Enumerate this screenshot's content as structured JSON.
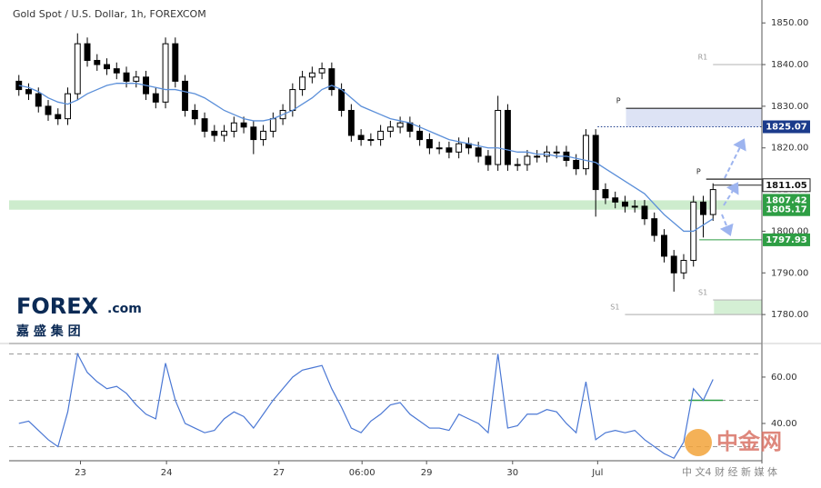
{
  "title": "Gold Spot / U.S. Dollar, 1h, FOREXCOM",
  "logo": {
    "brand": "FOREX",
    "suffix": ".com",
    "sub": "嘉 盛 集 团"
  },
  "watermark": {
    "name": "中金网",
    "sub": "中 文4 财 经 新 媒 体"
  },
  "chart_data": [
    {
      "type": "candlestick",
      "x": [
        0,
        1,
        2,
        3,
        4,
        5,
        6,
        7,
        8,
        9,
        10,
        11,
        12,
        13,
        14,
        15,
        16,
        17,
        18,
        19,
        20,
        21,
        22,
        23,
        24,
        25,
        26,
        27,
        28,
        29,
        30,
        31,
        32,
        33,
        34,
        35,
        36,
        37,
        38,
        39,
        40,
        41,
        42,
        43,
        44,
        45,
        46,
        47,
        48,
        49,
        50,
        51,
        52,
        53,
        54,
        55,
        56,
        57,
        58,
        59,
        60,
        61,
        62,
        63,
        64,
        65,
        66,
        67,
        68,
        69,
        70,
        71
      ],
      "open": [
        1836,
        1834,
        1833,
        1830,
        1828,
        1827,
        1833,
        1845,
        1841,
        1840,
        1839,
        1838,
        1836,
        1837,
        1833,
        1831,
        1845,
        1836,
        1829,
        1827,
        1824,
        1823,
        1824,
        1826,
        1825,
        1822,
        1824,
        1827,
        1829,
        1834,
        1837,
        1838,
        1839,
        1834,
        1829,
        1823,
        1822,
        1822,
        1824,
        1825,
        1826,
        1824,
        1822,
        1820,
        1820,
        1819,
        1821,
        1820,
        1818,
        1816,
        1829,
        1816,
        1816,
        1818,
        1818,
        1819,
        1819,
        1817,
        1815,
        1823,
        1810,
        1808,
        1807,
        1806,
        1806,
        1803,
        1799,
        1794,
        1790,
        1793,
        1807,
        1804
      ],
      "high": [
        1837.5,
        1835.5,
        1834.5,
        1831.5,
        1829.5,
        1834.5,
        1847.5,
        1846.5,
        1842.5,
        1841.5,
        1840.5,
        1839.5,
        1838.5,
        1838.5,
        1834.5,
        1846.5,
        1846.5,
        1837.5,
        1830.5,
        1828.5,
        1825.5,
        1825.5,
        1827.5,
        1827.5,
        1826.5,
        1825.5,
        1828.5,
        1830.5,
        1835.5,
        1838.5,
        1839.5,
        1840.5,
        1840.5,
        1835.5,
        1830.5,
        1824.5,
        1823.5,
        1825.5,
        1826.5,
        1827.5,
        1827.5,
        1825.5,
        1823.5,
        1821.5,
        1821.5,
        1822.5,
        1822.5,
        1821.5,
        1819.5,
        1832.5,
        1830.5,
        1817.5,
        1819.5,
        1819.5,
        1820.5,
        1820.5,
        1820.5,
        1818.5,
        1824.5,
        1824.5,
        1811.5,
        1809.5,
        1808.5,
        1807.5,
        1807.5,
        1804.5,
        1800.5,
        1795.5,
        1794.5,
        1808.5,
        1808.5,
        1811.5
      ],
      "low": [
        1832.5,
        1831.5,
        1828.5,
        1826.5,
        1825.5,
        1825.5,
        1831.5,
        1839.5,
        1838.5,
        1837.5,
        1836.5,
        1834.5,
        1834.5,
        1831.5,
        1829.5,
        1829.5,
        1834.5,
        1827.5,
        1825.5,
        1822.5,
        1821.5,
        1821.5,
        1822.5,
        1823.5,
        1818.5,
        1820.5,
        1822.5,
        1825.5,
        1827.5,
        1832.5,
        1835.5,
        1836.5,
        1832.5,
        1827.5,
        1821.5,
        1820.5,
        1820.5,
        1820.5,
        1822.5,
        1823.5,
        1822.5,
        1820.5,
        1818.5,
        1818.5,
        1817.5,
        1817.5,
        1818.5,
        1816.5,
        1814.5,
        1814.5,
        1814.5,
        1814.5,
        1814.5,
        1816.5,
        1816.5,
        1817.5,
        1815.5,
        1813.5,
        1813.5,
        1803.5,
        1806.5,
        1805.5,
        1804.5,
        1804.5,
        1801.5,
        1797.5,
        1792.5,
        1785.5,
        1788.5,
        1791.5,
        1798.5,
        1802.5
      ],
      "close": [
        1834,
        1833,
        1830,
        1828,
        1827,
        1833,
        1845,
        1841,
        1840,
        1839,
        1838,
        1836,
        1837,
        1833,
        1831,
        1845,
        1836,
        1829,
        1827,
        1824,
        1823,
        1824,
        1826,
        1825,
        1822,
        1824,
        1827,
        1829,
        1834,
        1837,
        1838,
        1839,
        1834,
        1829,
        1823,
        1822,
        1822,
        1824,
        1825,
        1826,
        1824,
        1822,
        1820,
        1820,
        1819,
        1821,
        1820,
        1818,
        1816,
        1829,
        1816,
        1816,
        1818,
        1818,
        1819,
        1819,
        1817,
        1815,
        1823,
        1810,
        1808,
        1807,
        1806,
        1806,
        1803,
        1799,
        1794,
        1790,
        1793,
        1807,
        1804,
        1810
      ],
      "up_color": "#ffffff",
      "down_color": "#000000",
      "ma_values": [
        1835,
        1834.5,
        1833.5,
        1832,
        1831,
        1830.5,
        1831.5,
        1833,
        1834,
        1835,
        1835.5,
        1835.5,
        1835.5,
        1835,
        1834.5,
        1834,
        1834,
        1833.5,
        1833,
        1832,
        1830.5,
        1829,
        1828,
        1827,
        1826.5,
        1826.5,
        1827,
        1828,
        1829,
        1830.5,
        1832,
        1834,
        1835,
        1834,
        1832,
        1830,
        1829,
        1828,
        1827,
        1826.5,
        1826,
        1825,
        1824,
        1823,
        1822,
        1821.5,
        1821,
        1820.5,
        1820,
        1820,
        1819.5,
        1819,
        1819,
        1818.5,
        1818.5,
        1818,
        1818,
        1817.5,
        1817,
        1816.5,
        1815,
        1813.5,
        1812,
        1810.5,
        1809,
        1806.5,
        1804,
        1802,
        1800,
        1800,
        1801.5,
        1803
      ],
      "ma_color": "#5b8fd9",
      "xlim": [
        -1,
        76
      ],
      "xticks": [
        {
          "value": 6.3,
          "label": "23"
        },
        {
          "value": 15.1,
          "label": "24"
        },
        {
          "value": 26.6,
          "label": "27"
        },
        {
          "value": 35.1,
          "label": "06:00"
        },
        {
          "value": 41.7,
          "label": "29"
        },
        {
          "value": 50.5,
          "label": "30"
        },
        {
          "value": 59.2,
          "label": "Jul"
        }
      ],
      "ylim": [
        1773.7,
        1855.5
      ],
      "yticks": [
        {
          "value": 1780,
          "label": "1780.00"
        },
        {
          "value": 1790,
          "label": "1790.00"
        },
        {
          "value": 1800,
          "label": "1800.00"
        },
        {
          "value": 1810,
          "label": "1810.00"
        },
        {
          "value": 1820,
          "label": "1820.00"
        },
        {
          "value": 1830,
          "label": "1830.00"
        },
        {
          "value": 1840,
          "label": "1840.00"
        },
        {
          "value": 1850,
          "label": "1850.00"
        }
      ],
      "zones": [
        {
          "from": -1,
          "low": 1805.17,
          "high": 1807.42,
          "color": "#cdeccd"
        },
        {
          "from": 62.1,
          "low": 1825.07,
          "high": 1829.5,
          "color": "#dde3f5"
        },
        {
          "from": 71.1,
          "low": 1780,
          "high": 1783.5,
          "color": "#d4efd4"
        }
      ],
      "levels": [
        {
          "label": "P",
          "value": 1829.5,
          "from": 62.1,
          "color": "#222222"
        },
        {
          "label": "R1",
          "value": 1840,
          "from": 71,
          "color": "#bbbbbb"
        },
        {
          "label": "S1",
          "value": 1780,
          "from": 62,
          "color": "#bbbbbb"
        },
        {
          "label": "S1",
          "value": 1783.5,
          "from": 71,
          "color": "#bbbbbb"
        },
        {
          "label": "P",
          "value": 1812.5,
          "from": 70.3,
          "color": "#222222"
        }
      ],
      "price_labels": [
        {
          "value": 1825.07,
          "label": "1825.07",
          "from": 59.2,
          "color": "#1b3b8b",
          "style": "dotted"
        },
        {
          "value": 1811.05,
          "label": "1811.05",
          "from": 71,
          "color": "#222222",
          "style": "outline"
        },
        {
          "value": 1807.42,
          "label": "1807.42",
          "from": 76,
          "color": "#2e9e44",
          "style": "filled"
        },
        {
          "value": 1805.17,
          "label": "1805.17",
          "from": 76,
          "color": "#2e9e44",
          "style": "filled"
        },
        {
          "value": 1797.93,
          "label": "1797.93",
          "from": 69.6,
          "color": "#2e9e44",
          "style": "filled"
        }
      ]
    },
    {
      "type": "line",
      "values": [
        40,
        41,
        37,
        33,
        30,
        45,
        70,
        62,
        58,
        55,
        56,
        53,
        48,
        44,
        42,
        66,
        50,
        40,
        38,
        36,
        37,
        42,
        45,
        43,
        38,
        44,
        50,
        55,
        60,
        63,
        64,
        65,
        55,
        47,
        38,
        36,
        41,
        44,
        48,
        49,
        44,
        41,
        38,
        38,
        37,
        44,
        42,
        40,
        36,
        70,
        38,
        39,
        44,
        44,
        46,
        45,
        40,
        36,
        58,
        33,
        36,
        37,
        36,
        37,
        33,
        30,
        27,
        25,
        32,
        55,
        50,
        59
      ],
      "color": "#4a77d4",
      "ylim": [
        24.7,
        73.7
      ],
      "yticks": [
        {
          "value": 40,
          "label": "40.00"
        },
        {
          "value": 60,
          "label": "60.00"
        }
      ],
      "levels": [
        70,
        50,
        30
      ],
      "signal": {
        "value": 50,
        "from": 68.5,
        "to": 72,
        "color": "#2e9e44"
      }
    }
  ]
}
